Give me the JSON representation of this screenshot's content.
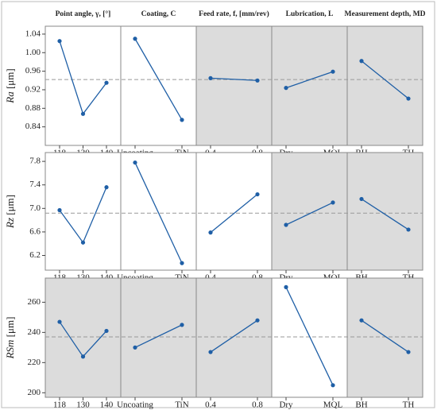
{
  "chart_data": {
    "type": "line",
    "factors": [
      {
        "title": "Point angle, γ, [°]",
        "categories": [
          "118",
          "130",
          "140"
        ]
      },
      {
        "title": "Coating, C",
        "categories": [
          "Uncoating",
          "TiN"
        ]
      },
      {
        "title": "Feed rate, f, [mm/rev)",
        "categories": [
          "0.4",
          "0.8"
        ]
      },
      {
        "title": "Lubrication, L",
        "categories": [
          "Dry",
          "MQL"
        ]
      },
      {
        "title": "Measurement depth, MD",
        "categories": [
          "BH",
          "TH"
        ]
      }
    ],
    "color": "#1f5fa6",
    "shade_color": "#dcdcdc",
    "rows": [
      {
        "ylabel_var": "Ra",
        "ylabel_unit": "[μm]",
        "ylim": [
          0.8,
          1.057
        ],
        "yticks": [
          {
            "value": 0.84,
            "label": "0.84"
          },
          {
            "value": 0.88,
            "label": "0.88"
          },
          {
            "value": 0.92,
            "label": "0.92"
          },
          {
            "value": 0.96,
            "label": "0.96"
          },
          {
            "value": 1.0,
            "label": "1.00"
          },
          {
            "value": 1.04,
            "label": "1.04"
          }
        ],
        "mean": 0.942,
        "panels": [
          {
            "values": [
              1.025,
              0.868,
              0.935
            ],
            "shaded": false
          },
          {
            "values": [
              1.03,
              0.855
            ],
            "shaded": false
          },
          {
            "values": [
              0.945,
              0.94
            ],
            "shaded": true
          },
          {
            "values": [
              0.924,
              0.959
            ],
            "shaded": true
          },
          {
            "values": [
              0.982,
              0.901
            ],
            "shaded": true
          }
        ]
      },
      {
        "ylabel_var": "Rz",
        "ylabel_unit": "[μm]",
        "ylim": [
          5.95,
          7.95
        ],
        "yticks": [
          6.2,
          6.6,
          {
            "value": 7.0,
            "label": "7.0"
          },
          7.4,
          7.8
        ],
        "mean": 6.92,
        "panels": [
          {
            "values": [
              6.97,
              6.42,
              7.36
            ],
            "shaded": false
          },
          {
            "values": [
              7.78,
              6.07
            ],
            "shaded": false
          },
          {
            "values": [
              6.59,
              7.24
            ],
            "shaded": false
          },
          {
            "values": [
              6.72,
              7.1
            ],
            "shaded": true
          },
          {
            "values": [
              7.16,
              6.64
            ],
            "shaded": true
          }
        ]
      },
      {
        "ylabel_var": "RSm",
        "ylabel_unit": "[μm]",
        "ylim": [
          197,
          276
        ],
        "yticks": [
          200,
          220,
          240,
          260
        ],
        "mean": 237,
        "panels": [
          {
            "values": [
              247,
              224,
              241
            ],
            "shaded": true
          },
          {
            "values": [
              230,
              245
            ],
            "shaded": true
          },
          {
            "values": [
              227,
              248
            ],
            "shaded": true
          },
          {
            "values": [
              270,
              205
            ],
            "shaded": false
          },
          {
            "values": [
              248,
              227
            ],
            "shaded": true
          }
        ]
      }
    ]
  }
}
